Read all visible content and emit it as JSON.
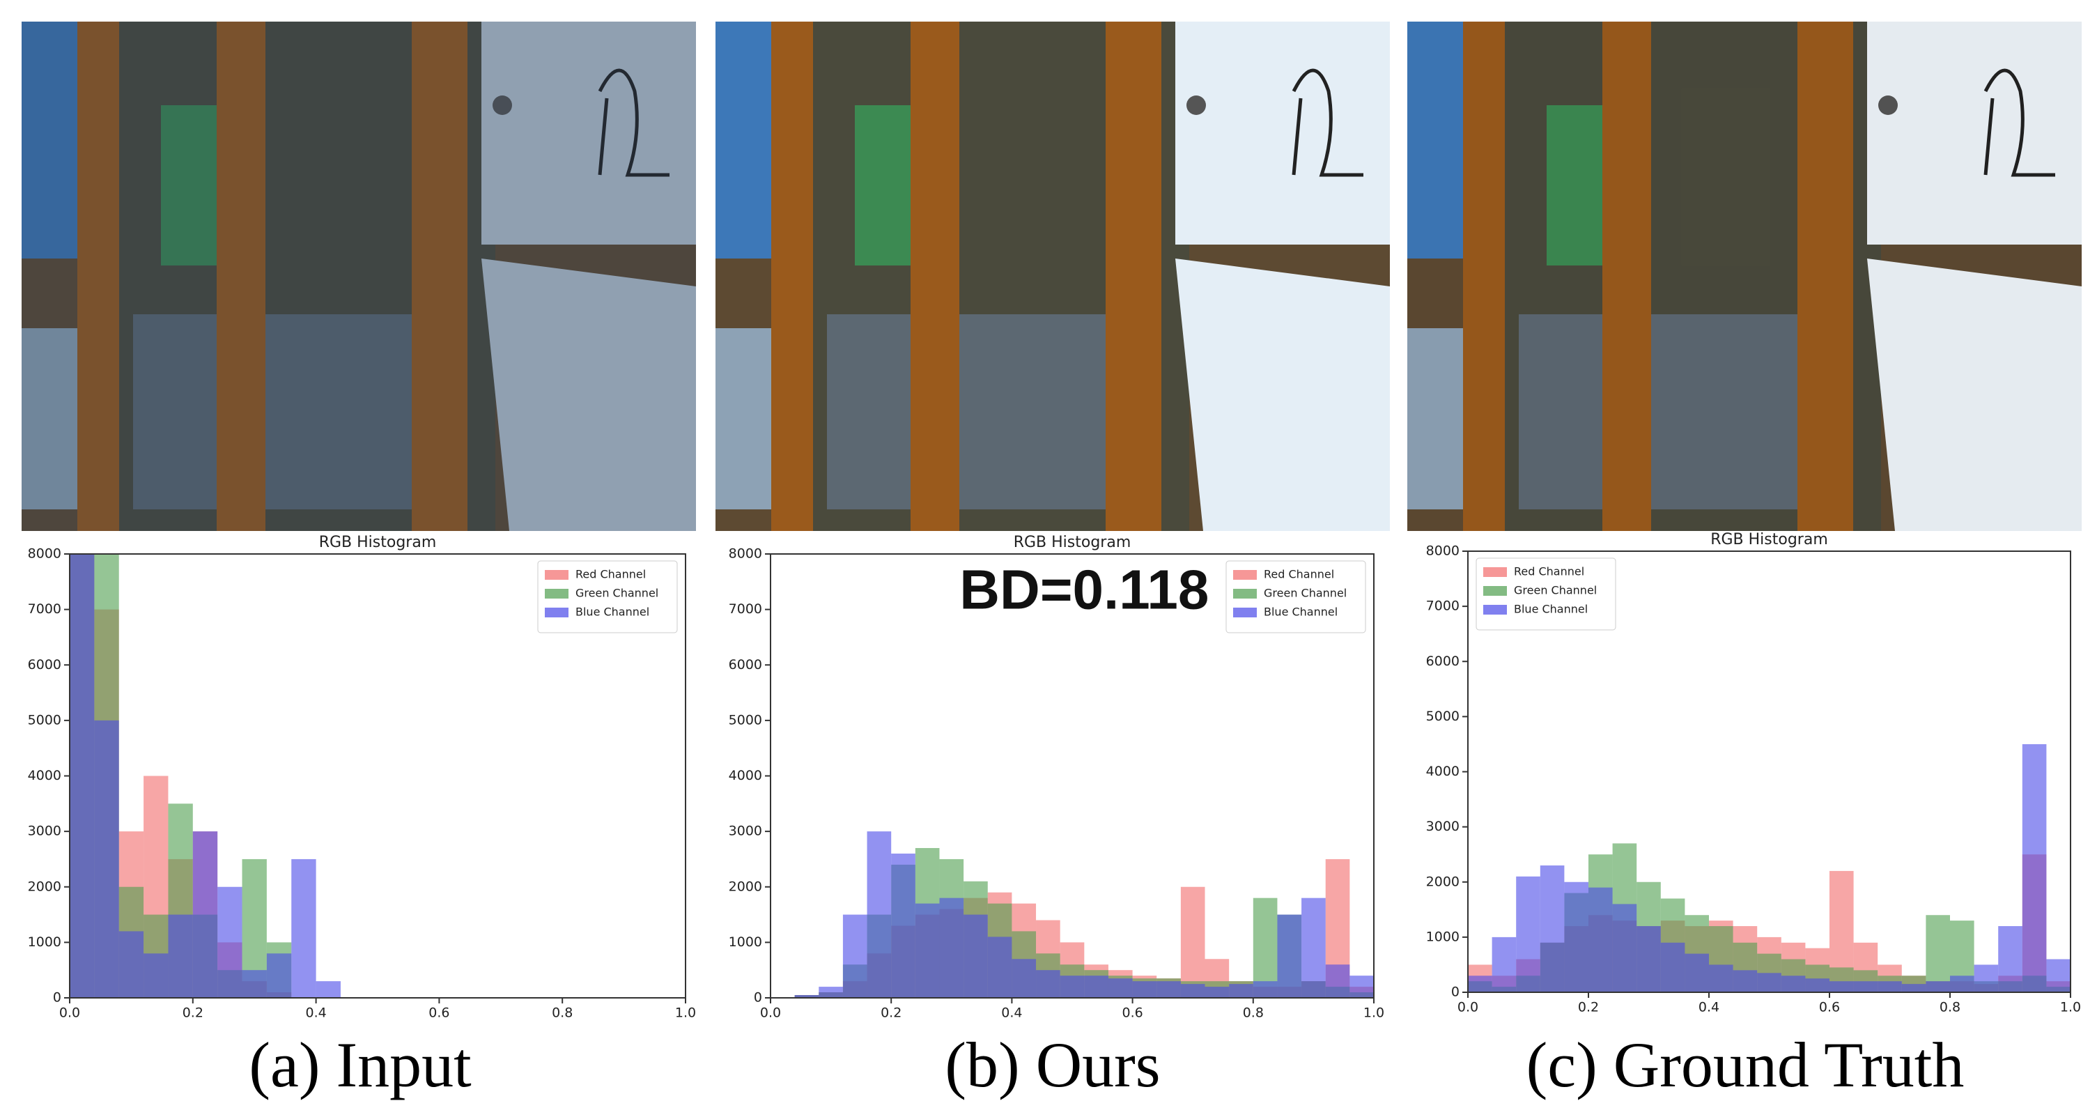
{
  "chart_data": [
    {
      "type": "histogram",
      "title": "RGB Histogram",
      "caption": "(a) Input",
      "legend": "upper right",
      "bins": [
        0,
        0.04,
        0.08,
        0.12,
        0.16,
        0.2,
        0.24,
        0.28,
        0.32,
        0.36,
        0.4,
        0.44,
        0.48,
        0.52,
        0.56,
        0.6,
        0.64,
        0.68,
        0.72,
        0.76,
        0.8,
        0.84,
        0.88,
        0.92,
        0.96,
        1
      ],
      "series": [
        {
          "name": "Red Channel",
          "color": "#f26b6b",
          "values": [
            8000,
            7000,
            3000,
            4000,
            2500,
            3000,
            1000,
            300,
            100,
            0,
            0,
            0,
            0,
            0,
            0,
            0,
            0,
            0,
            0,
            0,
            0,
            0,
            0,
            0,
            0
          ]
        },
        {
          "name": "Green Channel",
          "color": "#4e9e4e",
          "values": [
            8000,
            8000,
            2000,
            1500,
            3500,
            1500,
            500,
            2500,
            1000,
            0,
            0,
            0,
            0,
            0,
            0,
            0,
            0,
            0,
            0,
            0,
            0,
            0,
            0,
            0,
            0
          ]
        },
        {
          "name": "Blue Channel",
          "color": "#4a4ae8",
          "values": [
            8000,
            5000,
            1200,
            800,
            1500,
            3000,
            2000,
            500,
            800,
            2500,
            300,
            0,
            0,
            0,
            0,
            0,
            0,
            0,
            0,
            0,
            0,
            0,
            0,
            0,
            0
          ]
        }
      ],
      "xlim": [
        0,
        1
      ],
      "xticks": [
        {
          "value": 0,
          "label": "0.0"
        },
        0.2,
        0.4,
        0.6,
        0.8,
        {
          "value": 1,
          "label": "1.0"
        }
      ],
      "ylim": [
        0,
        8000
      ],
      "yticks": [
        0,
        1000,
        2000,
        3000,
        4000,
        5000,
        6000,
        7000,
        8000
      ]
    },
    {
      "type": "histogram",
      "title": "RGB Histogram",
      "caption": "(b) Ours",
      "legend": "upper right",
      "annotation": "BD=0.118",
      "bins": [
        0,
        0.04,
        0.08,
        0.12,
        0.16,
        0.2,
        0.24,
        0.28,
        0.32,
        0.36,
        0.4,
        0.44,
        0.48,
        0.52,
        0.56,
        0.6,
        0.64,
        0.68,
        0.72,
        0.76,
        0.8,
        0.84,
        0.88,
        0.92,
        0.96,
        1
      ],
      "series": [
        {
          "name": "Red Channel",
          "color": "#f26b6b",
          "values": [
            0,
            50,
            100,
            300,
            800,
            1300,
            1500,
            1600,
            1800,
            1900,
            1700,
            1400,
            1000,
            600,
            500,
            400,
            350,
            2000,
            700,
            300,
            200,
            200,
            300,
            2500,
            200
          ]
        },
        {
          "name": "Green Channel",
          "color": "#4e9e4e",
          "values": [
            0,
            50,
            100,
            600,
            1500,
            2400,
            2700,
            2500,
            2100,
            1700,
            1200,
            800,
            600,
            500,
            400,
            350,
            350,
            300,
            300,
            300,
            1800,
            1500,
            300,
            200,
            100
          ]
        },
        {
          "name": "Blue Channel",
          "color": "#4a4ae8",
          "values": [
            0,
            50,
            200,
            1500,
            3000,
            2600,
            1700,
            1800,
            1500,
            1100,
            700,
            500,
            400,
            400,
            350,
            300,
            300,
            250,
            200,
            250,
            300,
            1500,
            1800,
            600,
            400
          ]
        }
      ],
      "xlim": [
        0,
        1
      ],
      "xticks": [
        {
          "value": 0,
          "label": "0.0"
        },
        0.2,
        0.4,
        0.6,
        0.8,
        {
          "value": 1,
          "label": "1.0"
        }
      ],
      "ylim": [
        0,
        8000
      ],
      "yticks": [
        0,
        1000,
        2000,
        3000,
        4000,
        5000,
        6000,
        7000,
        8000
      ]
    },
    {
      "type": "histogram",
      "title": "RGB Histogram",
      "caption": "(c) Ground Truth",
      "legend": "upper left",
      "bins": [
        0,
        0.04,
        0.08,
        0.12,
        0.16,
        0.2,
        0.24,
        0.28,
        0.32,
        0.36,
        0.4,
        0.44,
        0.48,
        0.52,
        0.56,
        0.6,
        0.64,
        0.68,
        0.72,
        0.76,
        0.8,
        0.84,
        0.88,
        0.92,
        0.96,
        1
      ],
      "series": [
        {
          "name": "Red Channel",
          "color": "#f26b6b",
          "values": [
            500,
            300,
            600,
            900,
            1200,
            1400,
            1300,
            1200,
            1300,
            1200,
            1300,
            1200,
            1000,
            900,
            800,
            2200,
            900,
            500,
            300,
            200,
            200,
            150,
            300,
            2500,
            200
          ]
        },
        {
          "name": "Green Channel",
          "color": "#4e9e4e",
          "values": [
            200,
            100,
            300,
            900,
            1800,
            2500,
            2700,
            2000,
            1700,
            1400,
            1200,
            900,
            700,
            600,
            500,
            450,
            400,
            300,
            300,
            1400,
            1300,
            200,
            200,
            300,
            100
          ]
        },
        {
          "name": "Blue Channel",
          "color": "#4a4ae8",
          "values": [
            300,
            1000,
            2100,
            2300,
            2000,
            1900,
            1600,
            1200,
            900,
            700,
            500,
            400,
            350,
            300,
            250,
            200,
            200,
            200,
            150,
            200,
            300,
            500,
            1200,
            4500,
            600
          ]
        }
      ],
      "xlim": [
        0,
        1
      ],
      "xticks": [
        {
          "value": 0,
          "label": "0.0"
        },
        0.2,
        0.4,
        0.6,
        0.8,
        {
          "value": 1,
          "label": "1.0"
        }
      ],
      "ylim": [
        0,
        8000
      ],
      "yticks": [
        0,
        1000,
        2000,
        3000,
        4000,
        5000,
        6000,
        7000,
        8000
      ]
    }
  ]
}
